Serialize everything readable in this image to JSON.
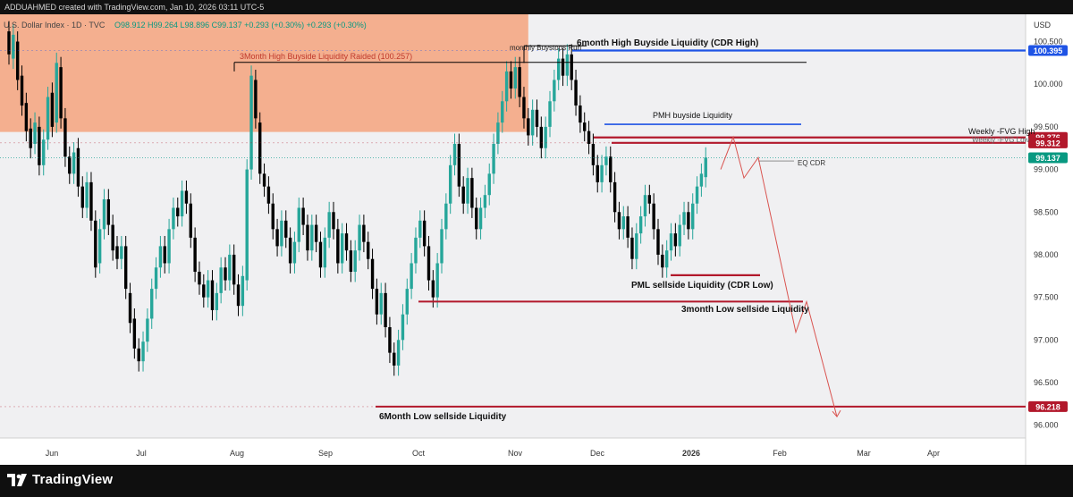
{
  "header": {
    "credit": "ADDUAHMED created with TradingView.com, Jan 10, 2026 03:11 UTC-5"
  },
  "legend": {
    "symbol": "U.S. Dollar Index · 1D · TVC",
    "ohlc": "O98.912  H99.264  L98.896  C99.137  +0.293 (+0.30%)  +0.293 (+0.30%)"
  },
  "currency": "USD",
  "chart_data": {
    "type": "candlestick",
    "instrument": "U.S. Dollar Index",
    "interval": "1D",
    "y_range": [
      95.85,
      100.82
    ],
    "price_ticks": [
      "100.500",
      "100.000",
      "99.500",
      "99.000",
      "98.500",
      "98.000",
      "97.500",
      "97.000",
      "96.500",
      "96.000"
    ],
    "time_labels": [
      "Jun",
      "Jul",
      "Aug",
      "Sep",
      "Oct",
      "Nov",
      "Dec",
      "2026",
      "Feb",
      "Mar",
      "Apr"
    ],
    "price_badges": [
      {
        "value": 100.395,
        "label": "100.395",
        "color": "#1e53e5"
      },
      {
        "value": 99.376,
        "label": "99.376",
        "color": "#b2182b"
      },
      {
        "value": 99.312,
        "label": "99.312",
        "color": "#b2182b"
      },
      {
        "value": 99.137,
        "label": "99.137",
        "color": "#089981"
      },
      {
        "value": 96.218,
        "label": "96.218",
        "color": "#b2182b"
      }
    ],
    "last_close": 99.137,
    "series": [
      {
        "open": 100.62,
        "close": 100.35
      },
      {
        "open": 100.3,
        "close": 100.58
      },
      {
        "open": 100.5,
        "close": 100.05
      },
      {
        "open": 100.1,
        "close": 99.75
      },
      {
        "open": 99.78,
        "close": 99.45
      },
      {
        "open": 99.48,
        "close": 99.25
      },
      {
        "open": 99.3,
        "close": 99.55
      },
      {
        "open": 99.5,
        "close": 99.05
      },
      {
        "open": 99.05,
        "close": 99.35
      },
      {
        "open": 99.35,
        "close": 99.85
      },
      {
        "open": 99.9,
        "close": 99.5
      },
      {
        "open": 99.55,
        "close": 100.25
      },
      {
        "open": 100.2,
        "close": 99.6
      },
      {
        "open": 99.6,
        "close": 99.15
      },
      {
        "open": 99.15,
        "close": 98.95
      },
      {
        "open": 98.95,
        "close": 99.2
      },
      {
        "open": 99.25,
        "close": 98.8
      },
      {
        "open": 98.8,
        "close": 98.55
      },
      {
        "open": 98.55,
        "close": 98.85
      },
      {
        "open": 98.85,
        "close": 98.4
      },
      {
        "open": 98.4,
        "close": 97.85
      },
      {
        "open": 97.9,
        "close": 98.3
      },
      {
        "open": 98.3,
        "close": 98.65
      },
      {
        "open": 98.65,
        "close": 98.35
      },
      {
        "open": 98.35,
        "close": 98.05
      },
      {
        "open": 98.1,
        "close": 97.95
      },
      {
        "open": 97.95,
        "close": 98.1
      },
      {
        "open": 98.1,
        "close": 97.6
      },
      {
        "open": 97.55,
        "close": 97.2
      },
      {
        "open": 97.25,
        "close": 96.9
      },
      {
        "open": 96.9,
        "close": 96.75
      },
      {
        "open": 96.75,
        "close": 96.98
      },
      {
        "open": 96.98,
        "close": 97.25
      },
      {
        "open": 97.25,
        "close": 97.6
      },
      {
        "open": 97.6,
        "close": 97.85
      },
      {
        "open": 97.85,
        "close": 98.1
      },
      {
        "open": 98.1,
        "close": 97.9
      },
      {
        "open": 97.9,
        "close": 98.3
      },
      {
        "open": 98.3,
        "close": 98.55
      },
      {
        "open": 98.55,
        "close": 98.45
      },
      {
        "open": 98.45,
        "close": 98.75
      },
      {
        "open": 98.75,
        "close": 98.6
      },
      {
        "open": 98.6,
        "close": 98.2
      },
      {
        "open": 98.2,
        "close": 97.8
      },
      {
        "open": 97.8,
        "close": 97.65
      },
      {
        "open": 97.65,
        "close": 97.5
      },
      {
        "open": 97.5,
        "close": 97.7
      },
      {
        "open": 97.7,
        "close": 97.35
      },
      {
        "open": 97.35,
        "close": 97.55
      },
      {
        "open": 97.55,
        "close": 97.85
      },
      {
        "open": 97.85,
        "close": 97.7
      },
      {
        "open": 97.7,
        "close": 98.0
      },
      {
        "open": 98.0,
        "close": 97.65
      },
      {
        "open": 97.65,
        "close": 97.4
      },
      {
        "open": 97.4,
        "close": 97.75
      },
      {
        "open": 97.7,
        "close": 99.0
      },
      {
        "open": 99.0,
        "close": 100.1
      },
      {
        "open": 100.05,
        "close": 99.6
      },
      {
        "open": 99.55,
        "close": 98.95
      },
      {
        "open": 98.95,
        "close": 98.8
      },
      {
        "open": 98.8,
        "close": 98.6
      },
      {
        "open": 98.6,
        "close": 98.3
      },
      {
        "open": 98.3,
        "close": 98.1
      },
      {
        "open": 98.1,
        "close": 98.4
      },
      {
        "open": 98.4,
        "close": 98.2
      },
      {
        "open": 98.2,
        "close": 97.9
      },
      {
        "open": 97.9,
        "close": 98.15
      },
      {
        "open": 98.15,
        "close": 98.55
      },
      {
        "open": 98.55,
        "close": 98.35
      },
      {
        "open": 98.35,
        "close": 98.05
      },
      {
        "open": 98.05,
        "close": 98.35
      },
      {
        "open": 98.35,
        "close": 98.15
      },
      {
        "open": 98.15,
        "close": 97.85
      },
      {
        "open": 97.85,
        "close": 98.2
      },
      {
        "open": 98.2,
        "close": 98.5
      },
      {
        "open": 98.5,
        "close": 98.3
      },
      {
        "open": 98.3,
        "close": 97.9
      },
      {
        "open": 97.9,
        "close": 98.25
      },
      {
        "open": 98.25,
        "close": 98.05
      },
      {
        "open": 98.05,
        "close": 97.8
      },
      {
        "open": 97.8,
        "close": 98.05
      },
      {
        "open": 98.05,
        "close": 98.35
      },
      {
        "open": 98.35,
        "close": 98.15
      },
      {
        "open": 98.15,
        "close": 97.95
      },
      {
        "open": 97.95,
        "close": 97.6
      },
      {
        "open": 97.6,
        "close": 97.3
      },
      {
        "open": 97.3,
        "close": 97.55
      },
      {
        "open": 97.55,
        "close": 97.15
      },
      {
        "open": 97.15,
        "close": 96.85
      },
      {
        "open": 96.85,
        "close": 96.7
      },
      {
        "open": 96.7,
        "close": 97.0
      },
      {
        "open": 97.0,
        "close": 97.3
      },
      {
        "open": 97.3,
        "close": 97.6
      },
      {
        "open": 97.6,
        "close": 97.9
      },
      {
        "open": 97.9,
        "close": 98.2
      },
      {
        "open": 98.2,
        "close": 98.4
      },
      {
        "open": 98.4,
        "close": 98.1
      },
      {
        "open": 98.1,
        "close": 97.7
      },
      {
        "open": 97.7,
        "close": 97.5
      },
      {
        "open": 97.5,
        "close": 97.9
      },
      {
        "open": 97.9,
        "close": 98.3
      },
      {
        "open": 98.3,
        "close": 98.6
      },
      {
        "open": 98.6,
        "close": 99.05
      },
      {
        "open": 99.05,
        "close": 99.3
      },
      {
        "open": 99.3,
        "close": 98.8
      },
      {
        "open": 98.8,
        "close": 98.6
      },
      {
        "open": 98.6,
        "close": 98.9
      },
      {
        "open": 98.9,
        "close": 98.55
      },
      {
        "open": 98.55,
        "close": 98.3
      },
      {
        "open": 98.3,
        "close": 98.55
      },
      {
        "open": 98.55,
        "close": 98.7
      },
      {
        "open": 98.7,
        "close": 98.95
      },
      {
        "open": 98.95,
        "close": 99.3
      },
      {
        "open": 99.3,
        "close": 99.55
      },
      {
        "open": 99.55,
        "close": 99.8
      },
      {
        "open": 99.8,
        "close": 100.15
      },
      {
        "open": 100.15,
        "close": 99.95
      },
      {
        "open": 99.95,
        "close": 100.2
      },
      {
        "open": 100.2,
        "close": 99.85
      },
      {
        "open": 99.85,
        "close": 99.6
      },
      {
        "open": 99.6,
        "close": 99.4
      },
      {
        "open": 99.4,
        "close": 99.7
      },
      {
        "open": 99.7,
        "close": 99.5
      },
      {
        "open": 99.5,
        "close": 99.25
      },
      {
        "open": 99.25,
        "close": 99.5
      },
      {
        "open": 99.5,
        "close": 99.8
      },
      {
        "open": 99.8,
        "close": 100.05
      },
      {
        "open": 100.05,
        "close": 100.3
      },
      {
        "open": 100.3,
        "close": 100.1
      },
      {
        "open": 100.1,
        "close": 100.35
      },
      {
        "open": 100.35,
        "close": 100.05
      },
      {
        "open": 100.05,
        "close": 99.75
      },
      {
        "open": 99.75,
        "close": 99.55
      },
      {
        "open": 99.55,
        "close": 99.45
      },
      {
        "open": 99.45,
        "close": 99.3
      },
      {
        "open": 99.3,
        "close": 99.05
      },
      {
        "open": 99.05,
        "close": 98.85
      },
      {
        "open": 98.85,
        "close": 99.05
      },
      {
        "open": 99.05,
        "close": 99.15
      },
      {
        "open": 99.15,
        "close": 98.85
      },
      {
        "open": 98.85,
        "close": 98.5
      },
      {
        "open": 98.5,
        "close": 98.3
      },
      {
        "open": 98.3,
        "close": 98.45
      },
      {
        "open": 98.45,
        "close": 98.2
      },
      {
        "open": 98.2,
        "close": 97.95
      },
      {
        "open": 97.95,
        "close": 98.25
      },
      {
        "open": 98.25,
        "close": 98.45
      },
      {
        "open": 98.45,
        "close": 98.7
      },
      {
        "open": 98.7,
        "close": 98.6
      },
      {
        "open": 98.6,
        "close": 98.3
      },
      {
        "open": 98.3,
        "close": 98.0
      },
      {
        "open": 98.0,
        "close": 97.85
      },
      {
        "open": 97.85,
        "close": 98.05
      },
      {
        "open": 98.05,
        "close": 98.25
      },
      {
        "open": 98.25,
        "close": 98.1
      },
      {
        "open": 98.1,
        "close": 98.35
      },
      {
        "open": 98.35,
        "close": 98.5
      },
      {
        "open": 98.5,
        "close": 98.3
      },
      {
        "open": 98.3,
        "close": 98.6
      },
      {
        "open": 98.6,
        "close": 98.8
      },
      {
        "open": 98.8,
        "close": 98.95
      },
      {
        "open": 98.91,
        "close": 99.14
      }
    ],
    "zones": [
      {
        "kind": "supply_zone",
        "y_top": 100.82,
        "y_bottom": 99.44,
        "x_start_index": 0,
        "x_end_index": 120,
        "color": "#f4a784"
      }
    ],
    "horizontal_lines": [
      {
        "label": "6month High Buyside Liquidity (CDR High)",
        "value": 100.395,
        "color": "#1e53e5"
      },
      {
        "label": "3Month High Buyside Liquidity Raided (100.257)",
        "value": 100.257,
        "color": "#000000"
      },
      {
        "label": "monthly Buystops Run",
        "value": 100.45,
        "color": "#000000"
      },
      {
        "label": "PMH buyside Liquidity",
        "value": 99.53,
        "color": "#1e53e5"
      },
      {
        "label": "Weekly -FVG High",
        "value": 99.376,
        "color": "#b2182b"
      },
      {
        "label": "Weekly -FVG Low",
        "value": 99.312,
        "color": "#b2182b"
      },
      {
        "label": "EQ CDR",
        "value": 99.1,
        "color": "#555555"
      },
      {
        "label": "PML sellside Liquidity (CDR Low)",
        "value": 97.76,
        "color": "#b2182b"
      },
      {
        "label": "3month Low sellside Liquidity",
        "value": 97.45,
        "color": "#b2182b"
      },
      {
        "label": "6Month Low sellside Liquidity",
        "value": 96.218,
        "color": "#b2182b"
      }
    ],
    "projection_path": [
      99.0,
      99.38,
      98.9,
      99.14,
      97.09,
      97.45,
      96.1
    ],
    "colors": {
      "up": "#26a69a",
      "down": "#000000",
      "zone": "#f4a784"
    }
  },
  "annotations": {
    "six_month_high": "6month High Buyside Liquidity (CDR High)",
    "three_month_high": "3Month High Buyside Liquidity Raided (100.257)",
    "monthly_buystops": "monthly Buystops Run",
    "pmh": "PMH buyside Liquidity",
    "fvg_high": "Weekly -FVG High",
    "fvg_low": "Weekly -FVG Low",
    "eq_cdr": "EQ CDR",
    "pml": "PML sellside Liquidity (CDR Low)",
    "three_month_low": "3month Low sellside Liquidity",
    "six_month_low": "6Month Low sellside Liquidity"
  },
  "branding": {
    "name": "TradingView",
    "logo_icon": "tradingview-logo-icon"
  }
}
